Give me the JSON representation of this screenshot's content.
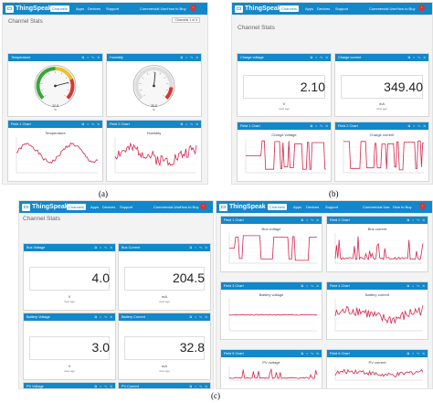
{
  "brand": "ThingSpeak",
  "nav": {
    "channels": "Channels",
    "apps": "Apps",
    "devices": "Devices",
    "support": "Support",
    "commercial": "Commercial Use",
    "how_to_buy": "How to Buy"
  },
  "page_title": "Channel Stats",
  "panel_a": {
    "label": "(a)",
    "channel_badge": "Channels 1 of 4",
    "gauges": [
      {
        "title": "Temperature",
        "value": "32.8",
        "unit": "°C",
        "fraction": 0.78
      },
      {
        "title": "Humidity",
        "value": "35.8",
        "unit": "%",
        "fraction": 0.52
      }
    ],
    "charts": [
      {
        "head": "Field 1 Chart",
        "title": "Temperature",
        "color": "#d6254c"
      },
      {
        "head": "Field 2 Chart",
        "title": "Humidity",
        "color": "#d6254c"
      }
    ]
  },
  "panel_b": {
    "label": "(b)",
    "numerics": [
      {
        "head": "Charge voltage",
        "value": "2.10",
        "unit": "V"
      },
      {
        "head": "Charge current",
        "value": "349.40",
        "unit": "mA"
      }
    ],
    "charts": [
      {
        "head": "Field 1 Chart",
        "title": "Charge voltage",
        "color": "#d6254c"
      },
      {
        "head": "Field 2 Chart",
        "title": "Charge current",
        "color": "#d6254c"
      }
    ]
  },
  "panel_c": {
    "label": "(c)",
    "numerics": [
      {
        "head": "Bus Voltage",
        "value": "4.0",
        "unit": "V"
      },
      {
        "head": "Bus Current",
        "value": "204.5",
        "unit": "mA"
      },
      {
        "head": "Battery Voltage",
        "value": "3.0",
        "unit": "V"
      },
      {
        "head": "Battery Current",
        "value": "32.8",
        "unit": "mA"
      },
      {
        "head": "PV Voltage",
        "value": "",
        "unit": ""
      },
      {
        "head": "PV Current",
        "value": "",
        "unit": ""
      }
    ],
    "charts": [
      {
        "head": "Field 1 Chart",
        "title": "Bus voltage",
        "color": "#d6254c"
      },
      {
        "head": "Field 2 Chart",
        "title": "Bus current",
        "color": "#d6254c"
      },
      {
        "head": "Field 3 Chart",
        "title": "Battery voltage",
        "color": "#d6254c"
      },
      {
        "head": "Field 4 Chart",
        "title": "Battery current",
        "color": "#d6254c"
      },
      {
        "head": "Field 5 Chart",
        "title": "PV voltage",
        "color": "#d6254c"
      },
      {
        "head": "Field 6 Chart",
        "title": "PV current",
        "color": "#d6254c"
      }
    ]
  },
  "widget_icons": "⧉ ○ ✎ ✕",
  "ago_text": "view ago",
  "accent": "#1287c9",
  "line_color": "#d6254c"
}
